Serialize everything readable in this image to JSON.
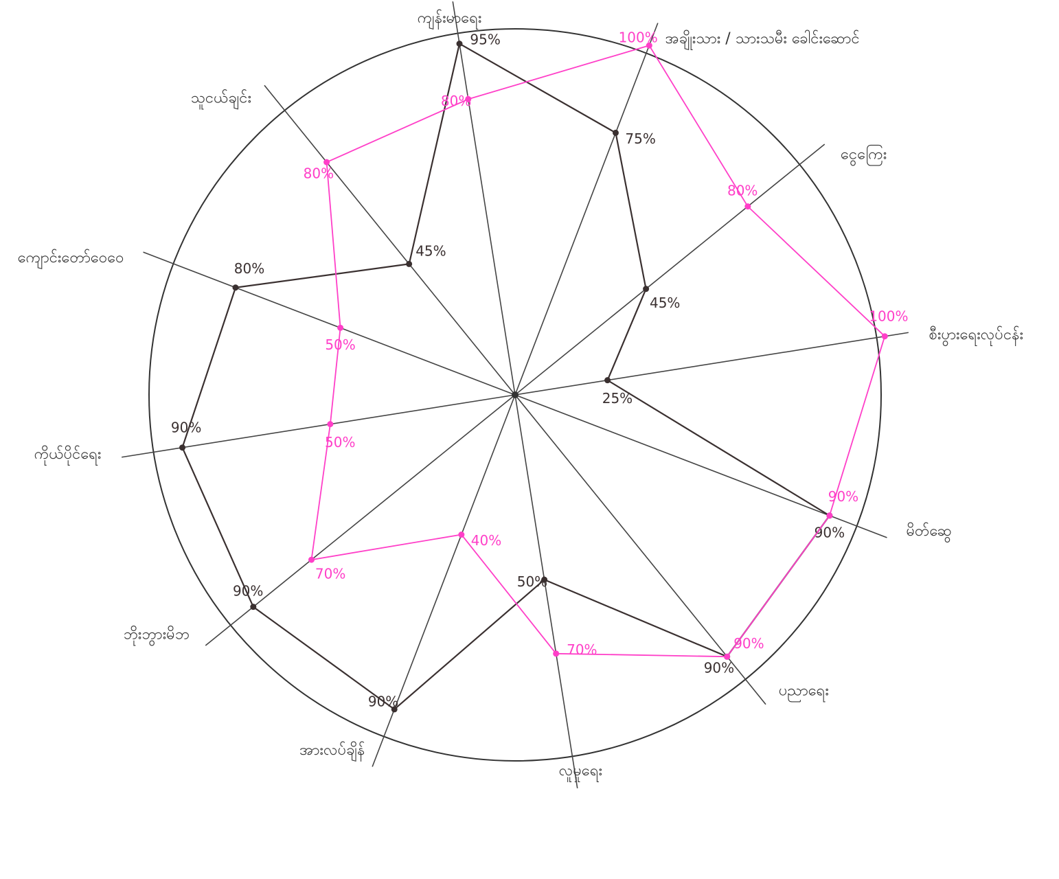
{
  "chart_data": {
    "type": "radar",
    "categories": [
      "ကျန်းမာရေး",
      "အချိုးသား / သားသမီး ခေါင်းဆောင်",
      "ငွေကြေး",
      "စီးပွားရေးလုပ်ငန်း",
      "မိတ်ဆွေ",
      "ပညာရေး",
      "လူမှုရေး",
      "အားလပ်ချိန်",
      "ဘိုးဘွားမိဘ",
      "ကိုယ်ပိုင်ရေး",
      "ကျောင်းတော်ဝေဝေ",
      "သူငယ်ချင်း"
    ],
    "series": [
      {
        "color": "#3a3030",
        "values": [
          95,
          75,
          45,
          25,
          90,
          90,
          50,
          90,
          90,
          90,
          80,
          45
        ],
        "value_labels": [
          "95%",
          "75%",
          "45%",
          "25%",
          "90%",
          "90%",
          "50%",
          "90%",
          "90%",
          "90%",
          "80%",
          "45%"
        ]
      },
      {
        "color": "#ff3fc8",
        "values": [
          80,
          100,
          80,
          100,
          90,
          90,
          70,
          40,
          70,
          50,
          50,
          80
        ],
        "value_labels": [
          "80%",
          "100%",
          "80%",
          "100%",
          "90%",
          "90%",
          "70%",
          "40%",
          "70%",
          "50%",
          "50%",
          "80%"
        ]
      }
    ],
    "rlim": [
      0,
      100
    ]
  }
}
